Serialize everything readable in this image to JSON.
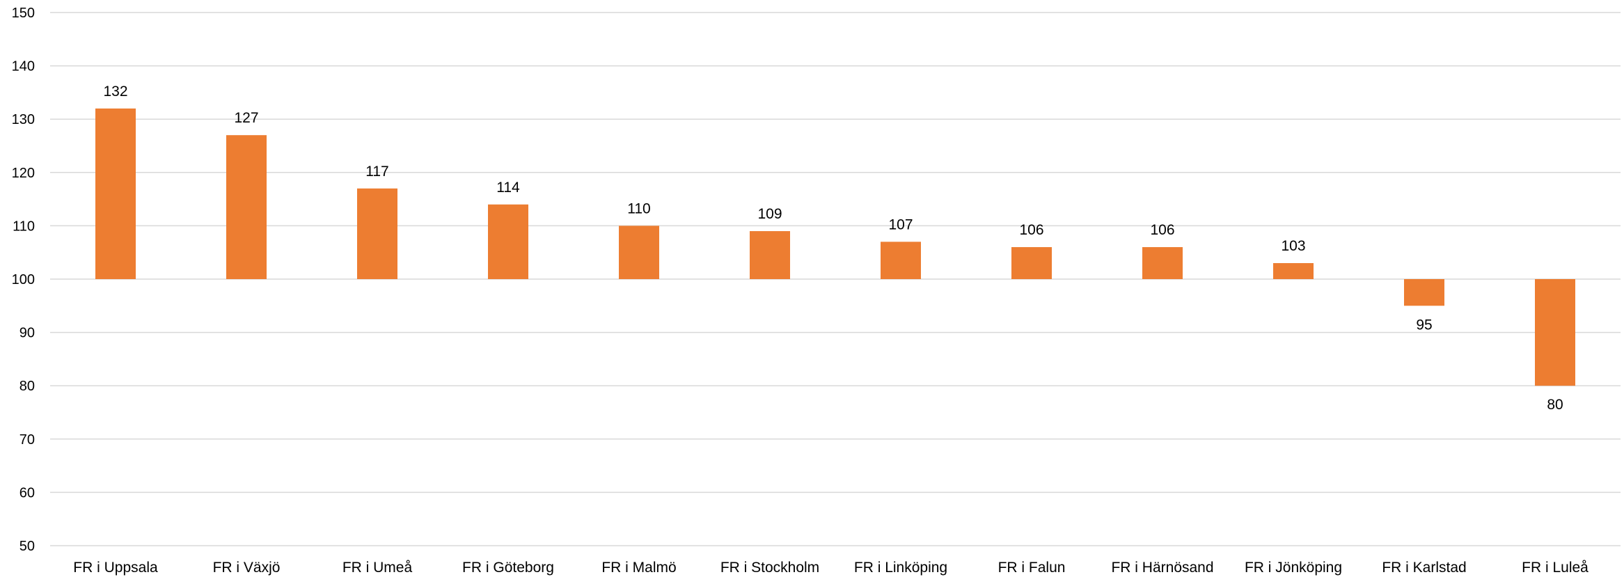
{
  "chart_data": {
    "type": "bar",
    "title": "",
    "xlabel": "",
    "ylabel": "",
    "baseline": 100,
    "ylim": [
      50,
      150
    ],
    "yticks": [
      50,
      60,
      70,
      80,
      90,
      100,
      110,
      120,
      130,
      140,
      150
    ],
    "grid": true,
    "legend": "none",
    "categories": [
      "FR i Uppsala",
      "FR i Växjö",
      "FR i Umeå",
      "FR i Göteborg",
      "FR i Malmö",
      "FR i Stockholm",
      "FR i Linköping",
      "FR i Falun",
      "FR i Härnösand",
      "FR i Jönköping",
      "FR i Karlstad",
      "FR i Luleå"
    ],
    "values": [
      132,
      127,
      117,
      114,
      110,
      109,
      107,
      106,
      106,
      103,
      95,
      80
    ],
    "data_labels": [
      "132",
      "127",
      "117",
      "114",
      "110",
      "109",
      "107",
      "106",
      "106",
      "103",
      "95",
      "80"
    ],
    "colors": {
      "bar": "#ED7D31",
      "grid": "#D9D9D9",
      "text": "#000000"
    }
  }
}
